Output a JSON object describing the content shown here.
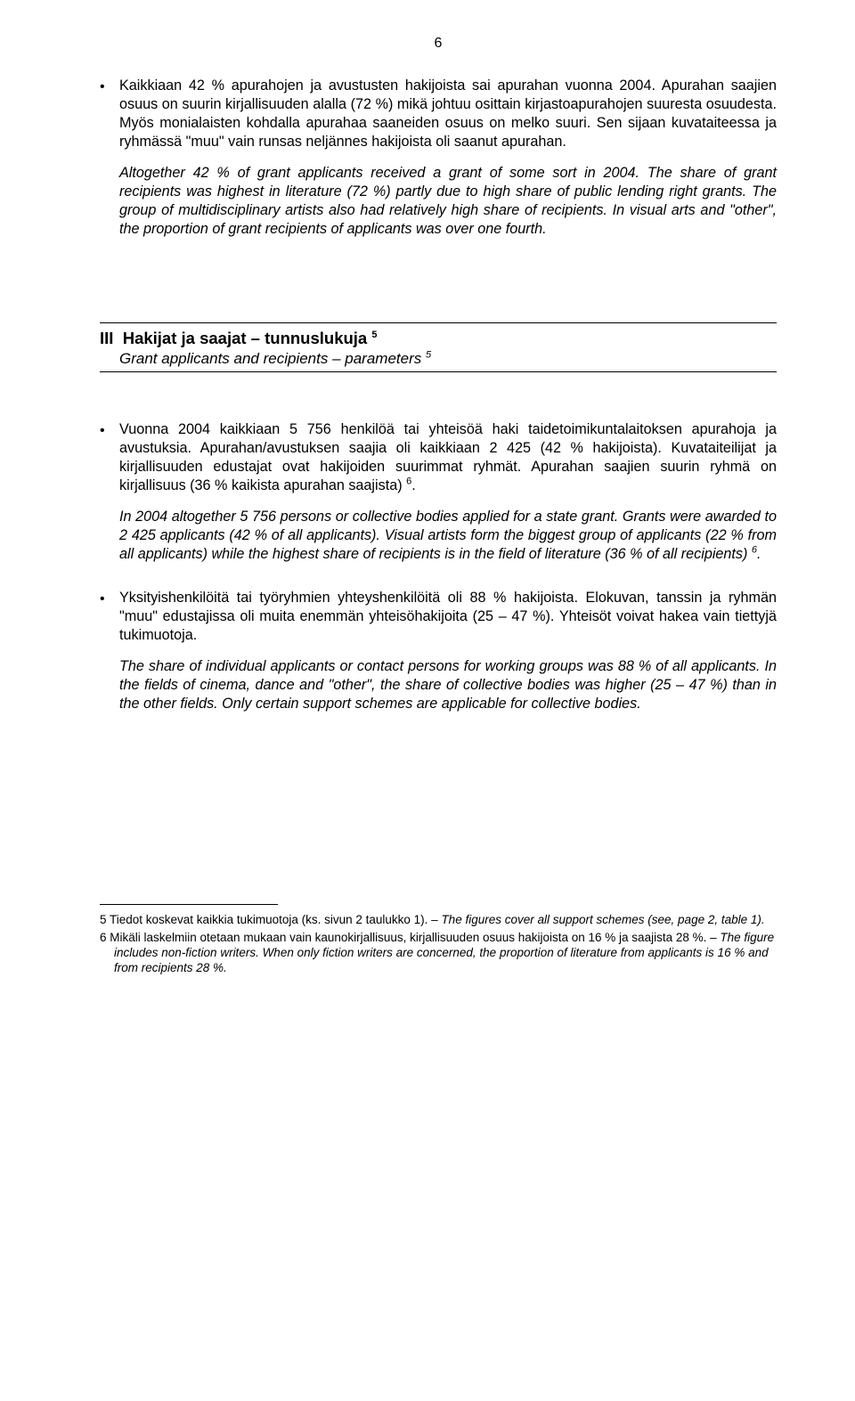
{
  "page_number": "6",
  "bullet1": {
    "fi": "Kaikkiaan 42 % apurahojen ja avustusten hakijoista sai apurahan vuonna 2004. Apurahan saajien osuus on suurin kirjallisuuden alalla (72 %) mikä johtuu osittain kirjastoapurahojen suuresta osuudesta. Myös monialaisten kohdalla apurahaa saaneiden osuus on melko suuri. Sen sijaan kuvataiteessa ja ryhmässä \"muu\" vain runsas neljännes hakijoista oli saanut apurahan.",
    "en": "Altogether 42 % of grant applicants received a grant of some sort in 2004. The share of grant recipients was highest in literature (72 %) partly due to high share of public lending right grants. The group of multidisciplinary artists also had relatively high share of recipients. In visual arts and \"other\", the proportion of grant recipients of applicants was over one fourth."
  },
  "section3": {
    "number": "III",
    "title_fi": "Hakijat ja saajat – tunnuslukuja",
    "title_en": "Grant applicants and recipients – parameters",
    "sup": "5"
  },
  "bullet2": {
    "fi": "Vuonna 2004 kaikkiaan 5 756 henkilöä tai yhteisöä haki taidetoimikuntalaitoksen apurahoja ja avustuksia. Apurahan/avustuksen saajia oli kaikkiaan 2 425 (42 % hakijoista). Kuvataiteilijat ja kirjallisuuden edustajat ovat hakijoiden suurimmat ryhmät. Apurahan saajien suurin ryhmä on kirjallisuus (36 % kaikista apurahan saajista) ",
    "sup_fi": "6",
    "fi_tail": ".",
    "en": "In 2004 altogether 5 756 persons or collective bodies applied for a state grant. Grants were awarded to 2 425 applicants (42 % of all applicants). Visual artists form the biggest group of applicants (22 % from all applicants) while the highest share of recipients is in the field of literature (36 % of all recipients) ",
    "sup_en": "6",
    "en_tail": "."
  },
  "bullet3": {
    "fi": "Yksityishenkilöitä tai työryhmien yhteyshenkilöitä oli 88 % hakijoista. Elokuvan, tanssin ja ryhmän \"muu\" edustajissa oli muita enemmän yhteisöhakijoita (25 – 47 %). Yhteisöt voivat hakea vain tiettyjä tukimuotoja.",
    "en": "The share of individual applicants or contact persons for working groups was 88 % of all applicants. In the fields of cinema, dance and \"other\", the share of collective bodies was higher (25 – 47 %) than in the other fields. Only certain support schemes are applicable for collective bodies."
  },
  "footnotes": {
    "n5_fi": "5 Tiedot koskevat kaikkia tukimuotoja (ks. sivun 2 taulukko 1). – ",
    "n5_en": "The figures cover all support schemes (see, page 2, table 1).",
    "n6_fi": "6 Mikäli laskelmiin otetaan mukaan vain kaunokirjallisuus, kirjallisuuden osuus hakijoista on 16 % ja saajista 28 %. – ",
    "n6_en": "The figure includes non-fiction writers. When only fiction writers are concerned, the proportion of literature from applicants is 16 % and from recipients 28 %."
  }
}
